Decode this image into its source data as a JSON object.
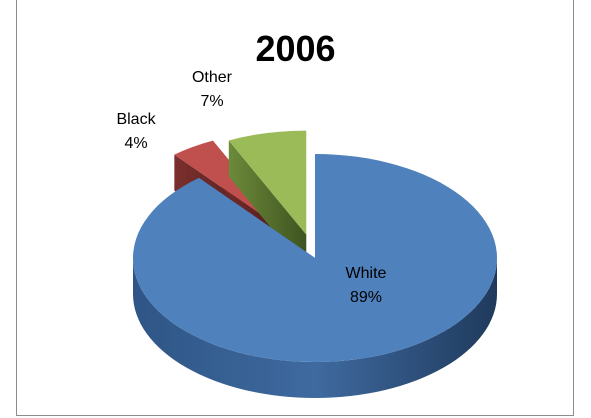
{
  "chart_data": {
    "type": "pie",
    "title": "2006",
    "slices": [
      {
        "label": "White",
        "value": 89,
        "value_label": "89%",
        "color": "#4f81bd"
      },
      {
        "label": "Black",
        "value": 4,
        "value_label": "4%",
        "color": "#c0504d"
      },
      {
        "label": "Other",
        "value": 7,
        "value_label": "7%",
        "color": "#9bbb59"
      }
    ],
    "style": "3d-exploded"
  }
}
